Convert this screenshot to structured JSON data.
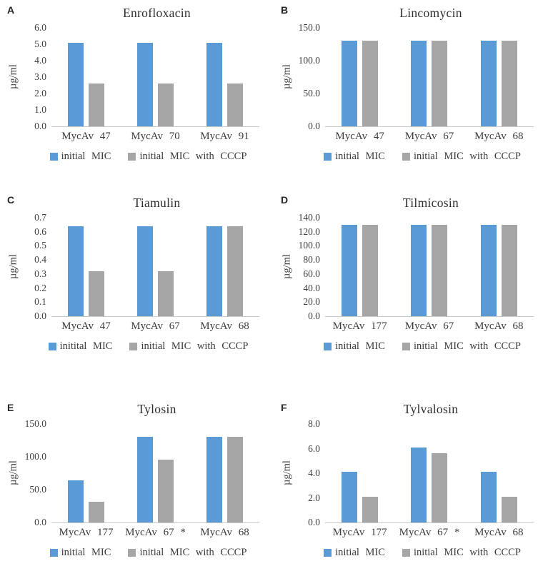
{
  "page": {
    "background": "#ffffff"
  },
  "colors": {
    "series_initial_mic": "#5B9BD5",
    "series_initial_mic_cccp": "#A6A6A6",
    "axis_baseline": "#C9C9C9",
    "text": "#404040"
  },
  "chart_data": [
    {
      "panel": "A",
      "type": "bar",
      "title": "Enrofloxacin",
      "ylabel": "µg/ml",
      "categories": [
        "MycAv 47",
        "MycAv 70",
        "MycAv 91"
      ],
      "series": [
        {
          "name": "initial MIC",
          "color": "#5B9BD5",
          "values": [
            5.1,
            5.1,
            5.1
          ]
        },
        {
          "name": "initial MIC with CCCP",
          "color": "#A6A6A6",
          "values": [
            2.6,
            2.6,
            2.6
          ]
        }
      ],
      "ylim": [
        0,
        6.0
      ],
      "yticks": [
        "6.0",
        "5.0",
        "4.0",
        "3.0",
        "2.0",
        "1.0",
        "0.0"
      ],
      "grid": false,
      "legend_position": "bottom"
    },
    {
      "panel": "B",
      "type": "bar",
      "title": "Lincomycin",
      "ylabel": "µg/ml",
      "categories": [
        "MycAv 47",
        "MycAv 67",
        "MycAv 68"
      ],
      "series": [
        {
          "name": "initial MIC",
          "color": "#5B9BD5",
          "values": [
            130,
            130,
            130
          ]
        },
        {
          "name": "initial MIC with CCCP",
          "color": "#A6A6A6",
          "values": [
            130,
            130,
            130
          ]
        }
      ],
      "ylim": [
        0,
        150.0
      ],
      "yticks": [
        "150.0",
        "100.0",
        "50.0",
        "0.0"
      ],
      "grid": false,
      "legend_position": "bottom"
    },
    {
      "panel": "C",
      "type": "bar",
      "title": "Tiamulin",
      "ylabel": "µg/ml",
      "categories": [
        "MycAv 47",
        "MycAv 67",
        "MycAv 68"
      ],
      "series": [
        {
          "name": "initital MIC",
          "color": "#5B9BD5",
          "values": [
            0.64,
            0.64,
            0.64
          ]
        },
        {
          "name": "initial MIC with CCCP",
          "color": "#A6A6A6",
          "values": [
            0.32,
            0.32,
            0.64
          ]
        }
      ],
      "ylim": [
        0,
        0.7
      ],
      "yticks": [
        "0.7",
        "0.6",
        "0.5",
        "0.4",
        "0.3",
        "0.2",
        "0.1",
        "0.0"
      ],
      "grid": false,
      "legend_position": "bottom"
    },
    {
      "panel": "D",
      "type": "bar",
      "title": "Tilmicosin",
      "ylabel": "µg/ml",
      "categories": [
        "MycAv 177",
        "MycAv 67",
        "MycAv 68"
      ],
      "series": [
        {
          "name": "initial MIC",
          "color": "#5B9BD5",
          "values": [
            130,
            130,
            130
          ]
        },
        {
          "name": "initial MIC with CCCP",
          "color": "#A6A6A6",
          "values": [
            130,
            130,
            130
          ]
        }
      ],
      "ylim": [
        0,
        140.0
      ],
      "yticks": [
        "140.0",
        "120.0",
        "100.0",
        "80.0",
        "60.0",
        "40.0",
        "20.0",
        "0.0"
      ],
      "grid": false,
      "legend_position": "bottom"
    },
    {
      "panel": "E",
      "type": "bar",
      "title": "Tylosin",
      "ylabel": "µg/ml",
      "categories": [
        "MycAv 177",
        "MycAv 67 *",
        "MycAv 68"
      ],
      "series": [
        {
          "name": "initial MIC",
          "color": "#5B9BD5",
          "values": [
            64,
            130,
            130
          ]
        },
        {
          "name": "initial MIC with CCCP",
          "color": "#A6A6A6",
          "values": [
            32,
            96,
            130
          ]
        }
      ],
      "ylim": [
        0,
        150.0
      ],
      "yticks": [
        "150.0",
        "100.0",
        "50.0",
        "0.0"
      ],
      "grid": false,
      "legend_position": "bottom"
    },
    {
      "panel": "F",
      "type": "bar",
      "title": "Tylvalosin",
      "ylabel": "µg/ml",
      "categories": [
        "MycAv 177",
        "MycAv 67 *",
        "MycAv 68"
      ],
      "series": [
        {
          "name": "initial MIC",
          "color": "#5B9BD5",
          "values": [
            4.1,
            6.1,
            4.1
          ]
        },
        {
          "name": "initial MIC with CCCP",
          "color": "#A6A6A6",
          "values": [
            2.1,
            5.6,
            2.1
          ]
        }
      ],
      "ylim": [
        0,
        8.0
      ],
      "yticks": [
        "8.0",
        "6.0",
        "4.0",
        "2.0",
        "0.0"
      ],
      "grid": false,
      "legend_position": "bottom"
    }
  ]
}
